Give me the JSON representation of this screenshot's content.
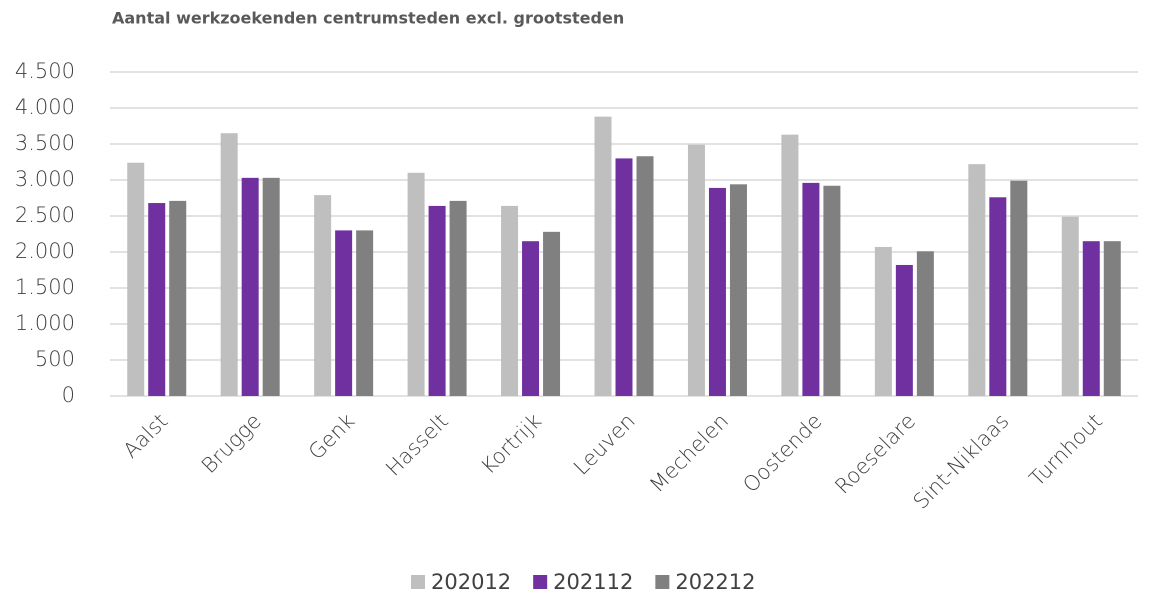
{
  "chart_data": {
    "type": "bar",
    "title": "Aantal werkzoekenden centrumsteden excl. grootsteden",
    "categories": [
      "Aalst",
      "Brugge",
      "Genk",
      "Hasselt",
      "Kortrijk",
      "Leuven",
      "Mechelen",
      "Oostende",
      "Roeselare",
      "Sint-Niklaas",
      "Turnhout"
    ],
    "series": [
      {
        "name": "202012",
        "color": "#bfbfbf",
        "values": [
          3240,
          3650,
          2790,
          3100,
          2640,
          3880,
          3490,
          3630,
          2070,
          3220,
          2490
        ]
      },
      {
        "name": "202112",
        "color": "#7030a0",
        "values": [
          2680,
          3030,
          2300,
          2640,
          2150,
          3300,
          2890,
          2960,
          1820,
          2760,
          2150
        ]
      },
      {
        "name": "202212",
        "color": "#808080",
        "values": [
          2710,
          3030,
          2300,
          2710,
          2280,
          3330,
          2940,
          2920,
          2010,
          2990,
          2150
        ]
      }
    ],
    "ylim": [
      0,
      4500
    ],
    "yticks": [
      0,
      500,
      {
        "value": 1000,
        "label": "1.000"
      },
      {
        "value": 1500,
        "label": "1.500"
      },
      {
        "value": 2000,
        "label": "2.000"
      },
      {
        "value": 2500,
        "label": "2.500"
      },
      {
        "value": 3000,
        "label": "3.000"
      },
      {
        "value": 3500,
        "label": "3.500"
      },
      {
        "value": 4000,
        "label": "4.000"
      },
      {
        "value": 4500,
        "label": "4.500"
      }
    ],
    "grid": true,
    "legend": "bottom"
  }
}
